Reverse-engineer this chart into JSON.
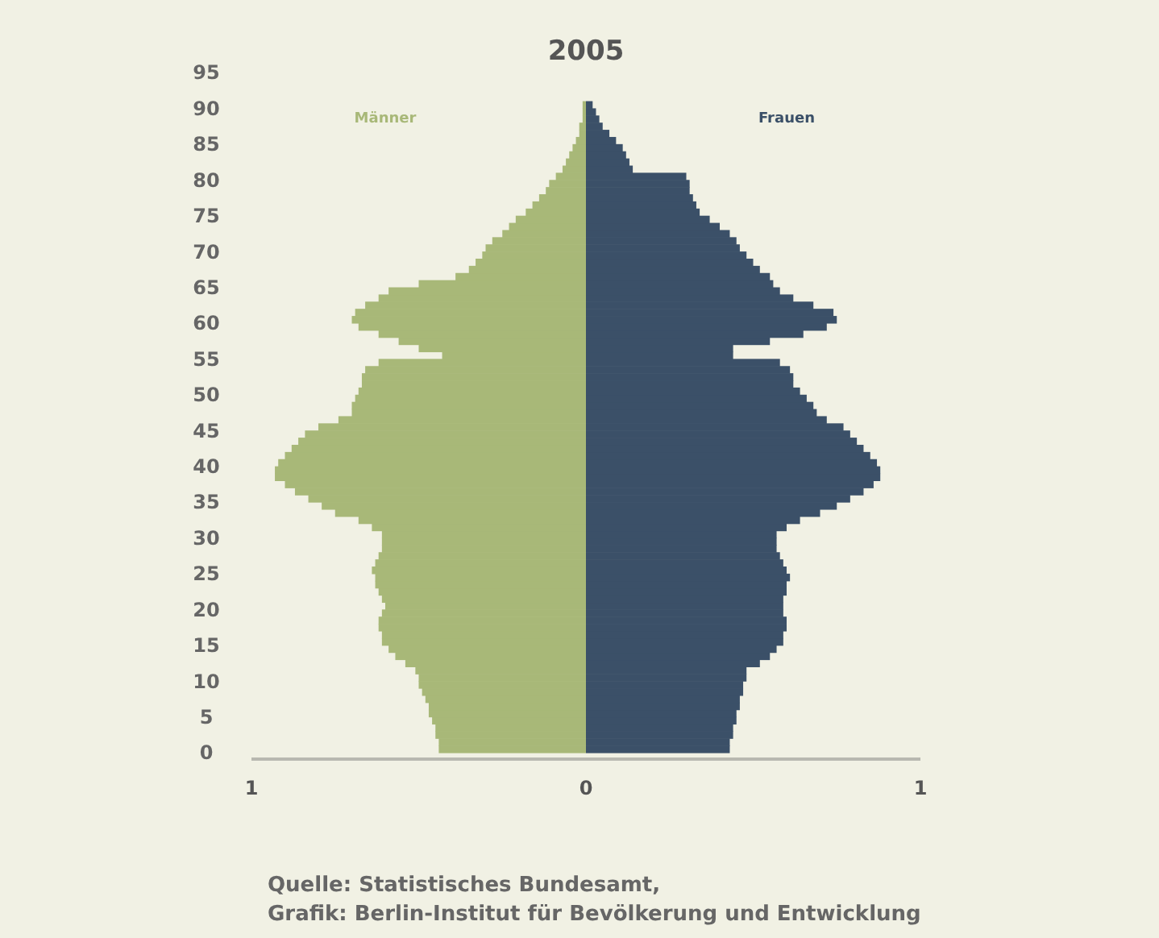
{
  "chart_data": {
    "type": "bar",
    "orientation": "horizontal",
    "stacked": true,
    "title": "2005",
    "x": [
      0,
      1,
      2,
      3,
      4,
      5,
      6,
      7,
      8,
      9,
      10,
      11,
      12,
      13,
      14,
      15,
      16,
      17,
      18,
      19,
      20,
      21,
      22,
      23,
      24,
      25,
      26,
      27,
      28,
      29,
      30,
      31,
      32,
      33,
      34,
      35,
      36,
      37,
      38,
      39,
      40,
      41,
      42,
      43,
      44,
      45,
      46,
      47,
      48,
      49,
      50,
      51,
      52,
      53,
      54,
      55,
      56,
      57,
      58,
      59,
      60,
      61,
      62,
      63,
      64,
      65,
      66,
      67,
      68,
      69,
      70,
      71,
      72,
      73,
      74,
      75,
      76,
      77,
      78,
      79,
      80,
      81,
      82,
      83,
      84,
      85,
      86,
      87,
      88,
      89,
      90
    ],
    "series": [
      {
        "name": "Männer",
        "color": "#a8b878",
        "values": [
          -0.44,
          -0.44,
          -0.45,
          -0.45,
          -0.46,
          -0.47,
          -0.47,
          -0.48,
          -0.49,
          -0.5,
          -0.5,
          -0.51,
          -0.54,
          -0.57,
          -0.59,
          -0.61,
          -0.61,
          -0.62,
          -0.62,
          -0.61,
          -0.6,
          -0.61,
          -0.62,
          -0.63,
          -0.63,
          -0.64,
          -0.63,
          -0.62,
          -0.61,
          -0.61,
          -0.61,
          -0.64,
          -0.68,
          -0.75,
          -0.79,
          -0.83,
          -0.87,
          -0.9,
          -0.93,
          -0.93,
          -0.92,
          -0.9,
          -0.88,
          -0.86,
          -0.84,
          -0.8,
          -0.74,
          -0.7,
          -0.7,
          -0.69,
          -0.68,
          -0.67,
          -0.67,
          -0.66,
          -0.62,
          -0.43,
          -0.5,
          -0.56,
          -0.62,
          -0.68,
          -0.7,
          -0.69,
          -0.66,
          -0.62,
          -0.59,
          -0.5,
          -0.39,
          -0.35,
          -0.33,
          -0.31,
          -0.3,
          -0.28,
          -0.25,
          -0.23,
          -0.21,
          -0.18,
          -0.16,
          -0.14,
          -0.12,
          -0.11,
          -0.09,
          -0.07,
          -0.06,
          -0.05,
          -0.04,
          -0.03,
          -0.02,
          -0.02,
          -0.01,
          -0.01,
          -0.01
        ]
      },
      {
        "name": "Frauen",
        "color": "#3b5068",
        "values": [
          0.43,
          0.43,
          0.44,
          0.44,
          0.45,
          0.45,
          0.46,
          0.46,
          0.47,
          0.47,
          0.48,
          0.48,
          0.52,
          0.55,
          0.57,
          0.59,
          0.59,
          0.6,
          0.6,
          0.59,
          0.59,
          0.59,
          0.6,
          0.6,
          0.61,
          0.6,
          0.59,
          0.58,
          0.57,
          0.57,
          0.57,
          0.6,
          0.64,
          0.7,
          0.75,
          0.79,
          0.83,
          0.86,
          0.88,
          0.88,
          0.87,
          0.85,
          0.83,
          0.81,
          0.79,
          0.77,
          0.72,
          0.69,
          0.68,
          0.66,
          0.64,
          0.62,
          0.62,
          0.61,
          0.58,
          0.44,
          0.44,
          0.55,
          0.65,
          0.72,
          0.75,
          0.74,
          0.68,
          0.62,
          0.58,
          0.56,
          0.55,
          0.52,
          0.5,
          0.48,
          0.46,
          0.45,
          0.43,
          0.4,
          0.37,
          0.34,
          0.33,
          0.32,
          0.31,
          0.31,
          0.3,
          0.14,
          0.13,
          0.12,
          0.11,
          0.09,
          0.07,
          0.05,
          0.04,
          0.03,
          0.02
        ]
      }
    ],
    "xlim": [
      -1,
      1
    ],
    "xticks": [
      {
        "value": -1,
        "label": "1"
      },
      0,
      1
    ],
    "ylim": [
      0,
      95
    ],
    "yticks": [
      0,
      5,
      10,
      15,
      20,
      25,
      30,
      35,
      40,
      45,
      50,
      55,
      60,
      65,
      70,
      75,
      80,
      85,
      90,
      95
    ],
    "annotations": [
      "Quelle: Statistisches Bundesamt,",
      "Grafik: Berlin-Institut für Bevölkerung und Entwicklung"
    ]
  }
}
